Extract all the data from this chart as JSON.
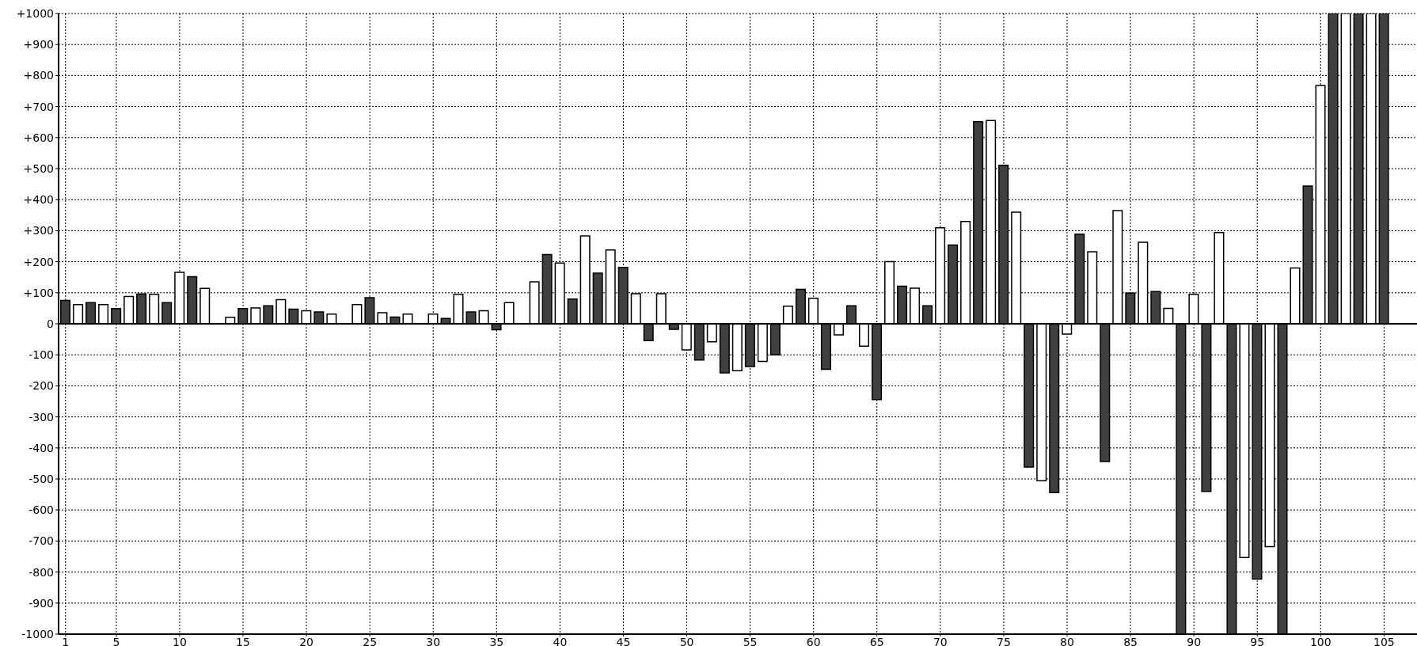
{
  "chart_data": {
    "type": "bar",
    "x": [
      1,
      2,
      3,
      4,
      5,
      6,
      7,
      8,
      9,
      10,
      11,
      12,
      13,
      14,
      15,
      16,
      17,
      18,
      19,
      20,
      21,
      22,
      23,
      24,
      25,
      26,
      27,
      28,
      29,
      30,
      31,
      32,
      33,
      34,
      35,
      36,
      37,
      38,
      39,
      40,
      41,
      42,
      43,
      44,
      45,
      46,
      47,
      48,
      49,
      50,
      51,
      52,
      53,
      54,
      55,
      56,
      57,
      58,
      59,
      60,
      61,
      62,
      63,
      64,
      65,
      66,
      67,
      68,
      69,
      70,
      71,
      72,
      73,
      74,
      75,
      76,
      77,
      78,
      79,
      80,
      81,
      82,
      83,
      84,
      85,
      86,
      87,
      88,
      89,
      90,
      91,
      92,
      93,
      94,
      95,
      96,
      97,
      98,
      99,
      100,
      101,
      102,
      103,
      104,
      105
    ],
    "values": [
      75,
      62,
      68,
      62,
      49,
      88,
      96,
      95,
      68,
      166,
      152,
      114,
      null,
      21,
      49,
      51,
      58,
      78,
      47,
      42,
      38,
      31,
      null,
      62,
      84,
      36,
      22,
      31,
      null,
      31,
      17,
      95,
      38,
      42,
      -19,
      68,
      null,
      135,
      223,
      196,
      80,
      283,
      163,
      238,
      182,
      97,
      -54,
      97,
      -18,
      -84,
      -117,
      -58,
      -158,
      -151,
      -138,
      -121,
      -100,
      57,
      111,
      82,
      -147,
      -36,
      58,
      -72,
      -244,
      200,
      121,
      115,
      58,
      309,
      254,
      330,
      651,
      655,
      511,
      360,
      -462,
      -506,
      -544,
      -33,
      289,
      232,
      -444,
      365,
      99,
      263,
      104,
      50,
      -1000,
      95,
      -540,
      294,
      -1000,
      -753,
      -823,
      -718,
      -1000,
      180,
      444,
      768,
      1000,
      1000,
      1000,
      1000,
      1000
    ],
    "colors": [
      "#404040",
      "#ffffff",
      "#404040",
      "#ffffff",
      "#404040",
      "#ffffff",
      "#404040",
      "#ffffff",
      "#404040",
      "#ffffff",
      "#404040",
      "#ffffff",
      "#ffffff",
      "#ffffff",
      "#404040",
      "#ffffff",
      "#404040",
      "#ffffff",
      "#404040",
      "#ffffff",
      "#404040",
      "#ffffff",
      "#ffffff",
      "#ffffff",
      "#404040",
      "#ffffff",
      "#404040",
      "#ffffff",
      "#ffffff",
      "#ffffff",
      "#404040",
      "#ffffff",
      "#404040",
      "#ffffff",
      "#404040",
      "#ffffff",
      "#ffffff",
      "#ffffff",
      "#404040",
      "#ffffff",
      "#404040",
      "#ffffff",
      "#404040",
      "#ffffff",
      "#404040",
      "#ffffff",
      "#404040",
      "#ffffff",
      "#404040",
      "#ffffff",
      "#404040",
      "#ffffff",
      "#404040",
      "#ffffff",
      "#404040",
      "#ffffff",
      "#404040",
      "#ffffff",
      "#404040",
      "#ffffff",
      "#404040",
      "#ffffff",
      "#404040",
      "#ffffff",
      "#404040",
      "#ffffff",
      "#404040",
      "#ffffff",
      "#404040",
      "#ffffff",
      "#404040",
      "#ffffff",
      "#404040",
      "#ffffff",
      "#404040",
      "#ffffff",
      "#404040",
      "#ffffff",
      "#404040",
      "#ffffff",
      "#404040",
      "#ffffff",
      "#404040",
      "#ffffff",
      "#404040",
      "#ffffff",
      "#404040",
      "#ffffff",
      "#404040",
      "#ffffff",
      "#404040",
      "#ffffff",
      "#404040",
      "#ffffff",
      "#404040",
      "#ffffff",
      "#404040",
      "#ffffff",
      "#404040",
      "#ffffff",
      "#404040",
      "#ffffff",
      "#404040",
      "#ffffff",
      "#404040"
    ],
    "xlim": [
      0.45,
      107.6
    ],
    "xticks": [
      1,
      5,
      10,
      15,
      20,
      25,
      30,
      35,
      40,
      45,
      50,
      55,
      60,
      65,
      70,
      75,
      80,
      85,
      90,
      95,
      100,
      105
    ],
    "ylim": [
      -1000,
      1000
    ],
    "yticks": [
      {
        "value": 1000,
        "label": "+1000"
      },
      {
        "value": 900,
        "label": "+900"
      },
      {
        "value": 800,
        "label": "+800"
      },
      {
        "value": 700,
        "label": "+700"
      },
      {
        "value": 600,
        "label": "+600"
      },
      {
        "value": 500,
        "label": "+500"
      },
      {
        "value": 400,
        "label": "+400"
      },
      {
        "value": 300,
        "label": "+300"
      },
      {
        "value": 200,
        "label": "+200"
      },
      {
        "value": 100,
        "label": "+100"
      },
      0,
      -100,
      -200,
      -300,
      -400,
      -500,
      -600,
      -700,
      -800,
      -900,
      -1000
    ],
    "ref_lines": [
      {
        "axis": "y",
        "value": 0
      }
    ],
    "grid": true,
    "legend": false
  }
}
